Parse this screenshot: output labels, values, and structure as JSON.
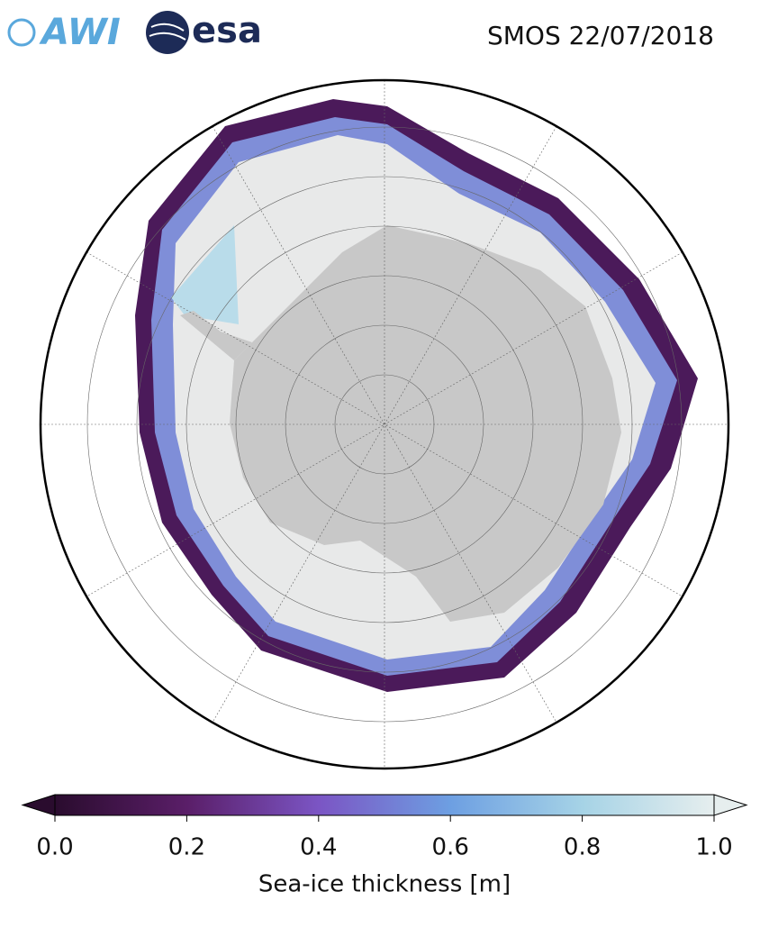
{
  "header": {
    "title": "SMOS 22/07/2018",
    "logos": [
      "AWI",
      "esa"
    ]
  },
  "colorbar": {
    "label": "Sea-ice thickness [m]",
    "lim": [
      0,
      1
    ],
    "ticks": [
      {
        "value": 0,
        "label": "0.0"
      },
      0.2,
      0.4,
      0.6,
      0.8,
      {
        "value": 1,
        "label": "1.0"
      }
    ],
    "colors": [
      "#2a0c2e",
      "#5a1e68",
      "#7b55c4",
      "#6d9fe2",
      "#a6d3e6",
      "#e6eeee"
    ]
  }
}
